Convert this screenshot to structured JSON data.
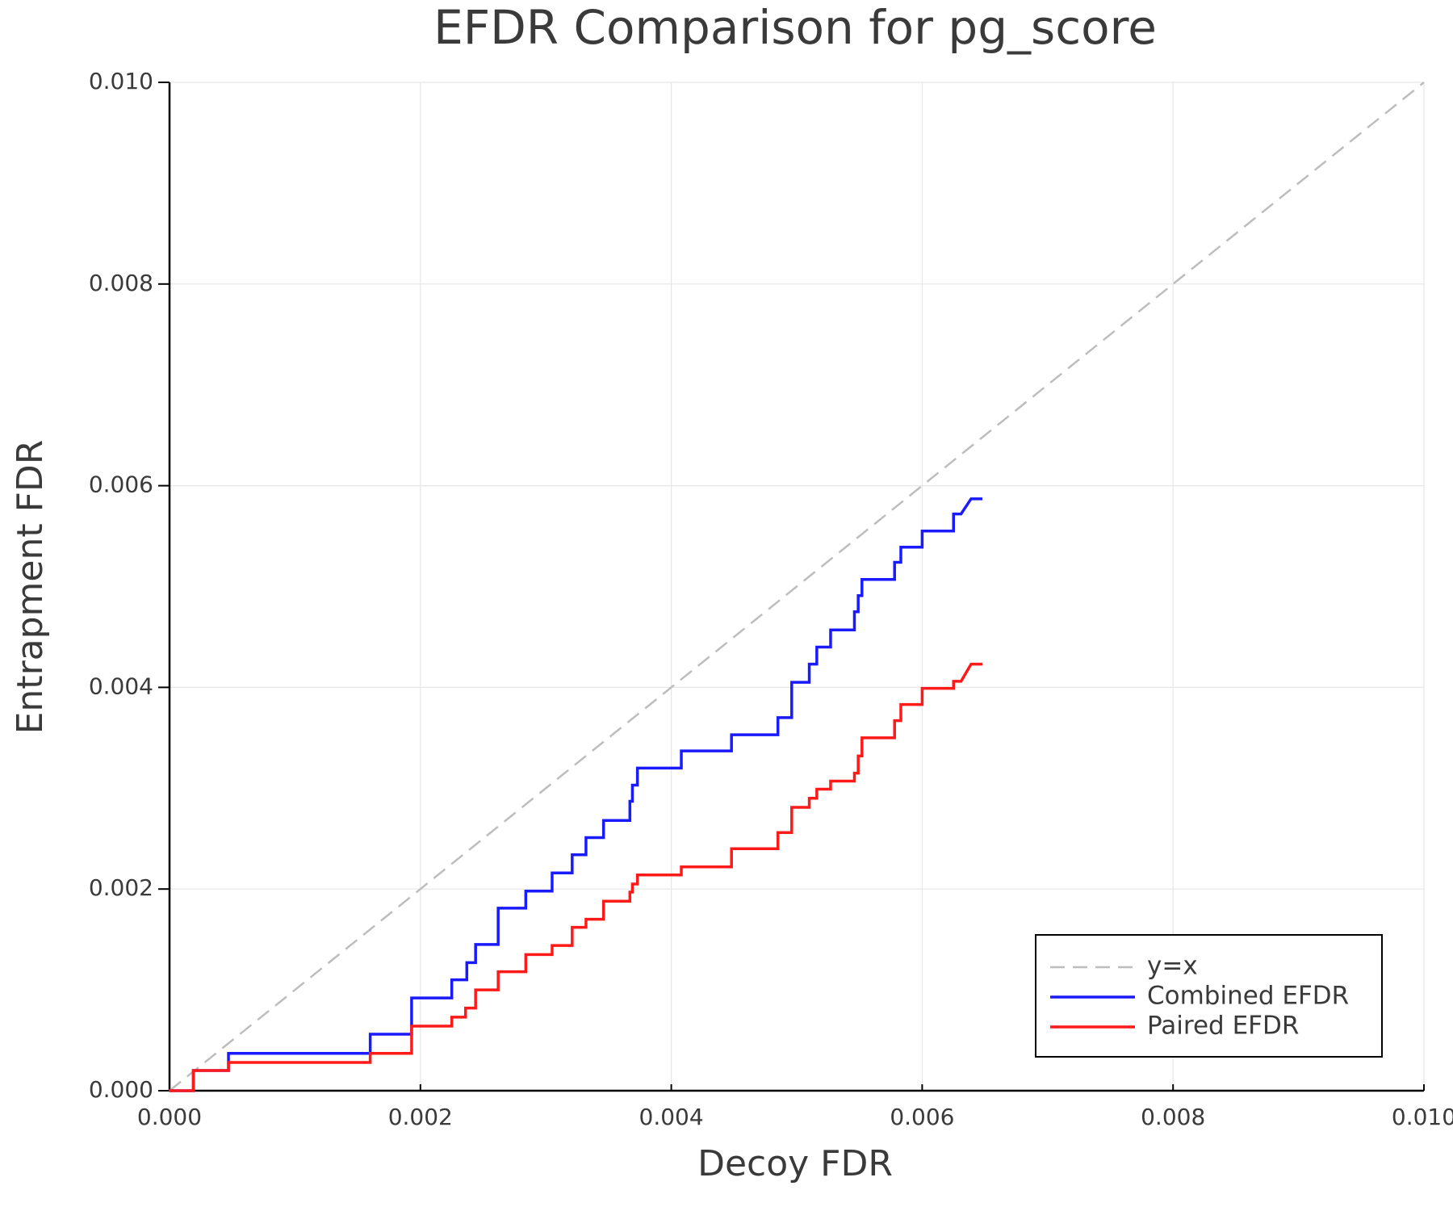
{
  "chart_data": {
    "type": "line",
    "title": "EFDR Comparison for pg_score",
    "x_label": "Decoy FDR",
    "y_label": "Entrapment FDR",
    "xlim": [
      0,
      0.01
    ],
    "ylim": [
      0,
      0.01
    ],
    "xticks": [
      {
        "value": 0,
        "label": "0.000"
      },
      {
        "value": 0.002,
        "label": "0.002"
      },
      {
        "value": 0.004,
        "label": "0.004"
      },
      {
        "value": 0.006,
        "label": "0.006"
      },
      {
        "value": 0.008,
        "label": "0.008"
      },
      {
        "value": 0.01,
        "label": "0.010"
      }
    ],
    "yticks": [
      {
        "value": 0,
        "label": "0.000"
      },
      {
        "value": 0.002,
        "label": "0.002"
      },
      {
        "value": 0.004,
        "label": "0.004"
      },
      {
        "value": 0.006,
        "label": "0.006"
      },
      {
        "value": 0.008,
        "label": "0.008"
      },
      {
        "value": 0.01,
        "label": "0.010"
      }
    ],
    "grid": true,
    "legend": "bottom-right",
    "series": [
      {
        "name": "y=x",
        "color": "#bdbdbd",
        "dash": true,
        "x": [
          0,
          0.01
        ],
        "values": [
          0,
          0.01
        ]
      },
      {
        "name": "Combined EFDR",
        "color": "#1a1aff",
        "dash": false,
        "x": [
          0,
          0.00019,
          0.00019,
          0.00047,
          0.00047,
          0.0016,
          0.0016,
          0.00193,
          0.00193,
          0.00225,
          0.00225,
          0.00237,
          0.00237,
          0.00244,
          0.00244,
          0.00262,
          0.00262,
          0.00284,
          0.00284,
          0.00305,
          0.00305,
          0.00321,
          0.00321,
          0.00332,
          0.00332,
          0.00346,
          0.00346,
          0.00367,
          0.00367,
          0.00369,
          0.00369,
          0.00373,
          0.00373,
          0.00408,
          0.00408,
          0.00448,
          0.00448,
          0.00485,
          0.00485,
          0.00496,
          0.00496,
          0.0051,
          0.0051,
          0.00516,
          0.00516,
          0.00527,
          0.00527,
          0.00546,
          0.00546,
          0.00549,
          0.00549,
          0.00552,
          0.00552,
          0.00578,
          0.00578,
          0.00583,
          0.00583,
          0.006,
          0.006,
          0.00625,
          0.00625,
          0.00631,
          0.00639,
          0.00648
        ],
        "values": [
          0,
          0,
          0.0002,
          0.0002,
          0.00037,
          0.00037,
          0.00056,
          0.00056,
          0.00092,
          0.00092,
          0.0011,
          0.0011,
          0.00127,
          0.00127,
          0.00145,
          0.00145,
          0.00181,
          0.00181,
          0.00198,
          0.00198,
          0.00216,
          0.00216,
          0.00234,
          0.00234,
          0.00251,
          0.00251,
          0.00268,
          0.00268,
          0.00287,
          0.00287,
          0.00303,
          0.00303,
          0.0032,
          0.0032,
          0.00337,
          0.00337,
          0.00353,
          0.00353,
          0.0037,
          0.0037,
          0.00405,
          0.00405,
          0.00423,
          0.00423,
          0.0044,
          0.0044,
          0.00457,
          0.00457,
          0.00475,
          0.00475,
          0.00491,
          0.00491,
          0.00507,
          0.00507,
          0.00524,
          0.00524,
          0.00539,
          0.00539,
          0.00555,
          0.00555,
          0.00572,
          0.00572,
          0.00587,
          0.00587
        ]
      },
      {
        "name": "Paired EFDR",
        "color": "#ff1a1a",
        "dash": false,
        "x": [
          0,
          0.00019,
          0.00019,
          0.00047,
          0.00047,
          0.0016,
          0.0016,
          0.00193,
          0.00193,
          0.00225,
          0.00225,
          0.00236,
          0.00236,
          0.00244,
          0.00244,
          0.00262,
          0.00262,
          0.00284,
          0.00284,
          0.00305,
          0.00305,
          0.00321,
          0.00321,
          0.00332,
          0.00332,
          0.00346,
          0.00346,
          0.00367,
          0.00367,
          0.00369,
          0.00369,
          0.00373,
          0.00373,
          0.00408,
          0.00408,
          0.00448,
          0.00448,
          0.00485,
          0.00485,
          0.00496,
          0.00496,
          0.0051,
          0.0051,
          0.00516,
          0.00516,
          0.00527,
          0.00527,
          0.00546,
          0.00546,
          0.00549,
          0.00549,
          0.00552,
          0.00552,
          0.00578,
          0.00578,
          0.00583,
          0.00583,
          0.006,
          0.006,
          0.00625,
          0.00625,
          0.00631,
          0.00639,
          0.00648
        ],
        "values": [
          0,
          0,
          0.0002,
          0.0002,
          0.00028,
          0.00028,
          0.00037,
          0.00037,
          0.00064,
          0.00064,
          0.00073,
          0.00073,
          0.00082,
          0.00082,
          0.001,
          0.001,
          0.00118,
          0.00118,
          0.00135,
          0.00135,
          0.00144,
          0.00144,
          0.00162,
          0.00162,
          0.0017,
          0.0017,
          0.00188,
          0.00188,
          0.00197,
          0.00197,
          0.00205,
          0.00205,
          0.00214,
          0.00214,
          0.00222,
          0.00222,
          0.0024,
          0.0024,
          0.00256,
          0.00256,
          0.00281,
          0.00281,
          0.0029,
          0.0029,
          0.00299,
          0.00299,
          0.00307,
          0.00307,
          0.00315,
          0.00315,
          0.00332,
          0.00332,
          0.0035,
          0.0035,
          0.00367,
          0.00367,
          0.00383,
          0.00383,
          0.00399,
          0.00399,
          0.00406,
          0.00406,
          0.00423,
          0.00423
        ]
      }
    ]
  }
}
